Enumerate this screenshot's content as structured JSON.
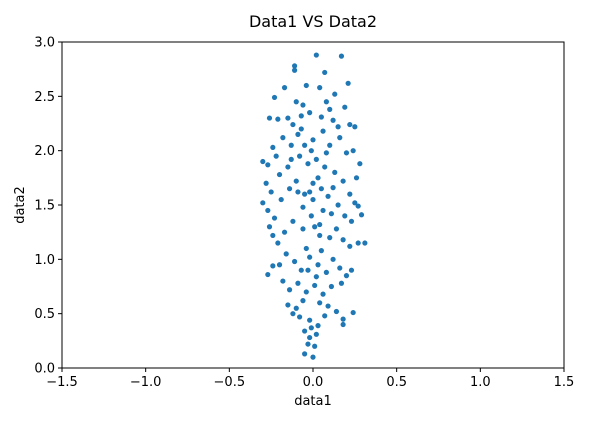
{
  "chart_data": {
    "type": "scatter",
    "title": "Data1 VS Data2",
    "xlabel": "data1",
    "ylabel": "data2",
    "xlim": [
      -1.5,
      1.5
    ],
    "ylim": [
      0.0,
      3.0
    ],
    "xticks": [
      -1.5,
      -1.0,
      -0.5,
      0.0,
      0.5,
      1.0,
      1.5
    ],
    "xtick_labels": [
      "−1.5",
      "−1.0",
      "−0.5",
      "0.0",
      "0.5",
      "1.0",
      "1.5"
    ],
    "yticks": [
      0.0,
      0.5,
      1.0,
      1.5,
      2.0,
      2.5,
      3.0
    ],
    "ytick_labels": [
      "0.0",
      "0.5",
      "1.0",
      "1.5",
      "2.0",
      "2.5",
      "3.0"
    ],
    "grid": false,
    "marker_color": "#1f77b4",
    "series": [
      {
        "points": [
          [
            0.02,
            2.88
          ],
          [
            0.17,
            2.87
          ],
          [
            -0.11,
            2.78
          ],
          [
            -0.11,
            2.74
          ],
          [
            0.07,
            2.72
          ],
          [
            -0.23,
            2.49
          ],
          [
            -0.17,
            2.58
          ],
          [
            -0.04,
            2.6
          ],
          [
            0.04,
            2.58
          ],
          [
            0.21,
            2.62
          ],
          [
            -0.1,
            2.45
          ],
          [
            -0.06,
            2.42
          ],
          [
            0.08,
            2.45
          ],
          [
            0.13,
            2.52
          ],
          [
            0.19,
            2.4
          ],
          [
            -0.26,
            2.3
          ],
          [
            -0.21,
            2.29
          ],
          [
            -0.15,
            2.3
          ],
          [
            -0.12,
            2.24
          ],
          [
            0.22,
            2.24
          ],
          [
            0.25,
            2.22
          ],
          [
            -0.02,
            2.35
          ],
          [
            0.05,
            2.31
          ],
          [
            0.12,
            2.28
          ],
          [
            -0.07,
            2.2
          ],
          [
            -0.3,
            1.9
          ],
          [
            -0.27,
            1.87
          ],
          [
            -0.24,
            2.03
          ],
          [
            -0.22,
            1.95
          ],
          [
            -0.18,
            2.12
          ],
          [
            -0.13,
            2.05
          ],
          [
            -0.09,
            2.15
          ],
          [
            0.0,
            2.1
          ],
          [
            0.06,
            2.18
          ],
          [
            0.1,
            2.05
          ],
          [
            0.16,
            2.12
          ],
          [
            0.2,
            1.98
          ],
          [
            0.24,
            2.0
          ],
          [
            0.28,
            1.88
          ],
          [
            0.26,
            1.75
          ],
          [
            -0.28,
            1.7
          ],
          [
            -0.25,
            1.62
          ],
          [
            -0.2,
            1.78
          ],
          [
            -0.15,
            1.85
          ],
          [
            -0.08,
            1.95
          ],
          [
            -0.03,
            1.88
          ],
          [
            0.02,
            1.92
          ],
          [
            0.07,
            1.85
          ],
          [
            0.13,
            1.8
          ],
          [
            0.18,
            1.72
          ],
          [
            0.22,
            1.6
          ],
          [
            0.25,
            1.52
          ],
          [
            0.27,
            1.49
          ],
          [
            0.29,
            1.41
          ],
          [
            -0.3,
            1.52
          ],
          [
            -0.27,
            1.45
          ],
          [
            -0.23,
            1.38
          ],
          [
            -0.19,
            1.55
          ],
          [
            -0.14,
            1.65
          ],
          [
            -0.1,
            1.72
          ],
          [
            -0.05,
            1.6
          ],
          [
            0.0,
            1.55
          ],
          [
            0.05,
            1.65
          ],
          [
            0.09,
            1.58
          ],
          [
            0.15,
            1.5
          ],
          [
            0.19,
            1.4
          ],
          [
            0.23,
            1.35
          ],
          [
            -0.26,
            1.3
          ],
          [
            -0.24,
            1.22
          ],
          [
            -0.21,
            1.15
          ],
          [
            -0.17,
            1.25
          ],
          [
            -0.12,
            1.35
          ],
          [
            -0.06,
            1.28
          ],
          [
            -0.01,
            1.4
          ],
          [
            0.04,
            1.32
          ],
          [
            0.1,
            1.2
          ],
          [
            0.14,
            1.28
          ],
          [
            0.18,
            1.18
          ],
          [
            0.22,
            1.12
          ],
          [
            0.27,
            1.15
          ],
          [
            0.31,
            1.15
          ],
          [
            -0.27,
            0.86
          ],
          [
            -0.24,
            0.94
          ],
          [
            -0.2,
            0.95
          ],
          [
            -0.16,
            1.05
          ],
          [
            -0.11,
            0.98
          ],
          [
            -0.07,
            0.9
          ],
          [
            -0.02,
            1.02
          ],
          [
            0.03,
            0.95
          ],
          [
            0.08,
            0.88
          ],
          [
            0.12,
            1.0
          ],
          [
            0.16,
            0.92
          ],
          [
            0.2,
            0.85
          ],
          [
            0.23,
            0.9
          ],
          [
            -0.18,
            0.8
          ],
          [
            -0.14,
            0.72
          ],
          [
            -0.09,
            0.78
          ],
          [
            -0.04,
            0.7
          ],
          [
            0.01,
            0.76
          ],
          [
            0.06,
            0.68
          ],
          [
            0.11,
            0.75
          ],
          [
            0.17,
            0.78
          ],
          [
            -0.15,
            0.58
          ],
          [
            -0.1,
            0.55
          ],
          [
            -0.06,
            0.62
          ],
          [
            0.04,
            0.6
          ],
          [
            0.09,
            0.57
          ],
          [
            0.14,
            0.52
          ],
          [
            -0.12,
            0.5
          ],
          [
            -0.08,
            0.47
          ],
          [
            -0.02,
            0.44
          ],
          [
            0.07,
            0.48
          ],
          [
            0.18,
            0.45
          ],
          [
            0.18,
            0.4
          ],
          [
            0.24,
            0.51
          ],
          [
            -0.05,
            0.34
          ],
          [
            -0.01,
            0.37
          ],
          [
            0.03,
            0.39
          ],
          [
            -0.02,
            0.28
          ],
          [
            -0.03,
            0.22
          ],
          [
            0.01,
            0.2
          ],
          [
            -0.05,
            0.13
          ],
          [
            0.0,
            0.1
          ],
          [
            0.02,
            0.31
          ],
          [
            -0.07,
            2.32
          ],
          [
            0.1,
            2.38
          ],
          [
            0.15,
            2.22
          ],
          [
            -0.01,
            2.0
          ],
          [
            0.03,
            1.75
          ],
          [
            -0.06,
            1.48
          ],
          [
            0.06,
            1.45
          ],
          [
            -0.02,
            1.62
          ],
          [
            0.01,
            1.3
          ],
          [
            -0.04,
            1.1
          ],
          [
            0.05,
            1.08
          ],
          [
            -0.09,
            1.62
          ],
          [
            0.12,
            1.66
          ],
          [
            -0.13,
            1.92
          ],
          [
            0.08,
            1.98
          ],
          [
            0.02,
            0.84
          ],
          [
            -0.05,
            2.05
          ],
          [
            0.0,
            1.7
          ],
          [
            0.04,
            1.22
          ],
          [
            -0.03,
            0.9
          ],
          [
            0.11,
            1.42
          ]
        ]
      }
    ]
  }
}
